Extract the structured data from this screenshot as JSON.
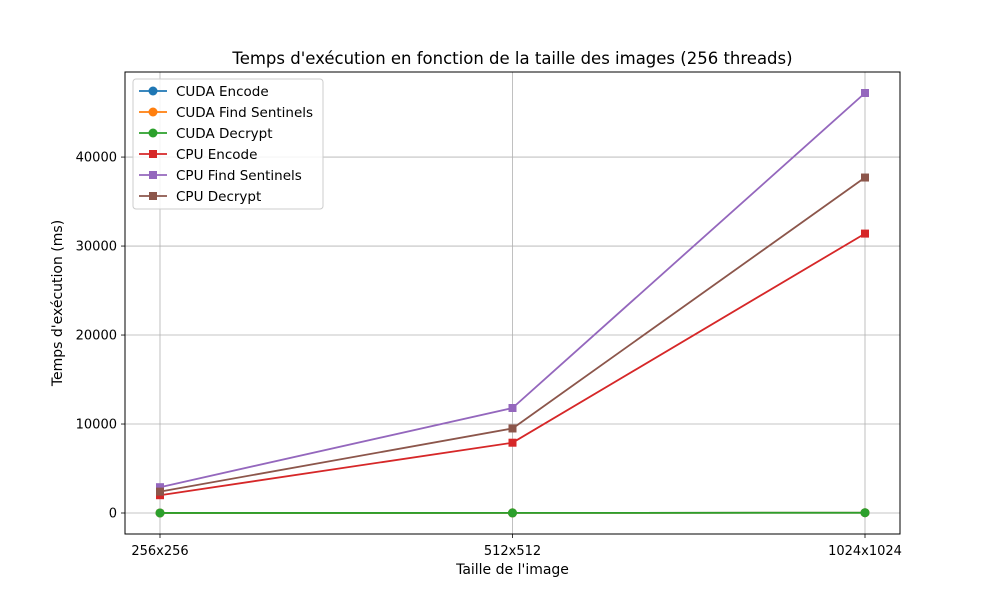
{
  "chart_data": {
    "type": "line",
    "title": "Temps d'exécution en fonction de la taille des images (256 threads)",
    "xlabel": "Taille de l'image",
    "ylabel": "Temps d'exécution (ms)",
    "categories": [
      "256x256",
      "512x512",
      "1024x1024"
    ],
    "ylim": [
      -2360,
      49560
    ],
    "yticks": [
      0,
      10000,
      20000,
      30000,
      40000
    ],
    "ytick_labels": [
      "0",
      "10000",
      "20000",
      "30000",
      "40000"
    ],
    "grid": true,
    "legend_position": "top-left",
    "series": [
      {
        "name": "CUDA Encode",
        "values": [
          5,
          10,
          30
        ],
        "color": "#1f77b4",
        "marker": "circle"
      },
      {
        "name": "CUDA Find Sentinels",
        "values": [
          5,
          10,
          30
        ],
        "color": "#ff7f0e",
        "marker": "circle"
      },
      {
        "name": "CUDA Decrypt",
        "values": [
          5,
          10,
          30
        ],
        "color": "#2ca02c",
        "marker": "circle"
      },
      {
        "name": "CPU Encode",
        "values": [
          2000,
          7900,
          31400
        ],
        "color": "#d62728",
        "marker": "square"
      },
      {
        "name": "CPU Find Sentinels",
        "values": [
          2900,
          11800,
          47200
        ],
        "color": "#9467bd",
        "marker": "square"
      },
      {
        "name": "CPU Decrypt",
        "values": [
          2400,
          9500,
          37700
        ],
        "color": "#8c564b",
        "marker": "square"
      }
    ]
  }
}
